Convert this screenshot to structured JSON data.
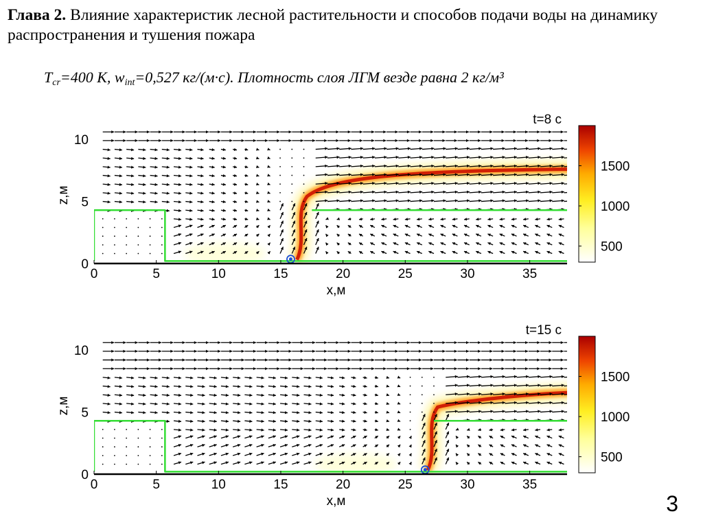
{
  "slide": {
    "chapter_label": "Глава 2.",
    "heading_text": "Влияние характеристик лесной растительности и способов подачи воды на динамику распространения и тушения пожара",
    "formula": {
      "t_sym": "T",
      "t_sub": "cr",
      "t_val": "=400 К, ",
      "w_sym": "w",
      "w_sub": "int",
      "w_val": "=0,527 кг/(м·с). Плотность слоя ЛГМ везде равна 2 кг/м³"
    },
    "page_number": "3"
  },
  "colors": {
    "vegetation_outline": "#33dd33",
    "flame_dark": "#cc1100",
    "flame_mid": "#ff8800",
    "flame_light": "#ffee66",
    "arrow": "#000000",
    "water_source": "#1a4fd6"
  },
  "chart_data": [
    {
      "type": "heatmap",
      "title": "t=8 с",
      "xlabel": "x,м",
      "ylabel": "z,м",
      "xlim": [
        0,
        38
      ],
      "ylim": [
        0,
        11
      ],
      "x_ticks": [
        0,
        5,
        10,
        15,
        20,
        25,
        30,
        35
      ],
      "y_ticks": [
        0,
        5,
        10
      ],
      "colorbar": {
        "range": [
          300,
          2000
        ],
        "ticks": [
          500,
          1000,
          1500
        ]
      },
      "fire_front_x": 16.5,
      "water_source_x": 15.8,
      "plume_height": 7.5,
      "vegetation_boundary": [
        [
          0,
          0.2
        ],
        [
          0,
          4.3
        ],
        [
          5.7,
          4.3
        ],
        [
          5.7,
          0.2
        ],
        [
          38,
          0.2
        ]
      ],
      "canopy_line": [
        [
          17.5,
          4.3
        ],
        [
          38,
          4.3
        ]
      ]
    },
    {
      "type": "heatmap",
      "title": "t=15 с",
      "xlabel": "x,м",
      "ylabel": "z,м",
      "xlim": [
        0,
        38
      ],
      "ylim": [
        0,
        11
      ],
      "x_ticks": [
        0,
        5,
        10,
        15,
        20,
        25,
        30,
        35
      ],
      "y_ticks": [
        0,
        5,
        10
      ],
      "colorbar": {
        "range": [
          300,
          2000
        ],
        "ticks": [
          500,
          1000,
          1500
        ]
      },
      "fire_front_x": 27,
      "water_source_x": 26.6,
      "plume_height": 6.5,
      "vegetation_boundary": [
        [
          0,
          0.2
        ],
        [
          0,
          4.3
        ],
        [
          5.7,
          4.3
        ],
        [
          5.7,
          0.2
        ],
        [
          38,
          0.2
        ]
      ],
      "canopy_line": [
        [
          27.3,
          4.3
        ],
        [
          38,
          4.3
        ]
      ]
    }
  ]
}
